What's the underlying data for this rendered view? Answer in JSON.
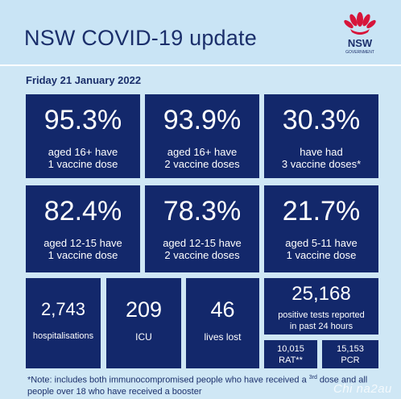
{
  "header": {
    "title": "NSW COVID-19 update",
    "logo_text_1": "NSW",
    "logo_text_2": "GOVERNMENT"
  },
  "date": "Friday 21 January 2022",
  "vaccination_tiles": [
    {
      "value": "95.3%",
      "line1": "aged 16+ have",
      "line2": "1 vaccine dose"
    },
    {
      "value": "93.9%",
      "line1": "aged 16+ have",
      "line2": "2 vaccine doses"
    },
    {
      "value": "30.3%",
      "line1": "have had",
      "line2": "3 vaccine doses*"
    },
    {
      "value": "82.4%",
      "line1": "aged 12-15 have",
      "line2": "1 vaccine dose"
    },
    {
      "value": "78.3%",
      "line1": "aged 12-15 have",
      "line2": "2 vaccine doses"
    },
    {
      "value": "21.7%",
      "line1": "aged 5-11 have",
      "line2": "1 vaccine dose"
    }
  ],
  "stats": {
    "hospitalisations": {
      "value": "2,743",
      "label": "hospitalisations"
    },
    "icu": {
      "value": "209",
      "label": "ICU"
    },
    "lives_lost": {
      "value": "46",
      "label": "lives lost"
    },
    "positive_tests": {
      "value": "25,168",
      "line1": "positive tests reported",
      "line2": "in past 24 hours"
    },
    "rat": {
      "value": "10,015",
      "label": "RAT**"
    },
    "pcr": {
      "value": "15,153",
      "label": "PCR"
    }
  },
  "note": {
    "part1": "*Note: includes both immunocompromised people who have received a ",
    "sup": "3rd",
    "part2": " dose and all people over 18 who have received a booster"
  },
  "watermark": "Chi na2au",
  "colors": {
    "tile_bg": "#13286b",
    "title": "#1b2f6b",
    "background": "#c9e4f5",
    "waratah_red": "#d7153a"
  }
}
